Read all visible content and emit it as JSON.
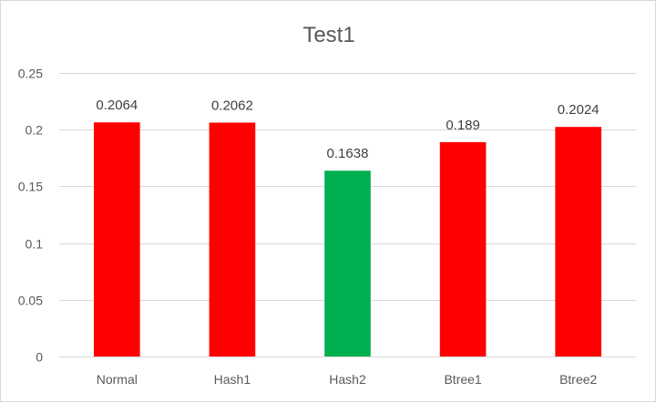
{
  "chart_data": {
    "type": "bar",
    "title": "Test1",
    "categories": [
      "Normal",
      "Hash1",
      "Hash2",
      "Btree1",
      "Btree2"
    ],
    "values": [
      0.2064,
      0.2062,
      0.1638,
      0.189,
      0.2024
    ],
    "data_labels": [
      "0.2064",
      "0.2062",
      "0.1638",
      "0.189",
      "0.2024"
    ],
    "bar_colors": [
      "#ff0000",
      "#ff0000",
      "#00b050",
      "#ff0000",
      "#ff0000"
    ],
    "ylim": [
      0,
      0.25
    ],
    "yticks": [
      0,
      0.05,
      0.1,
      0.15,
      0.2,
      0.25
    ],
    "ytick_labels": [
      "0",
      "0.05",
      "0.1",
      "0.15",
      "0.2",
      "0.25"
    ],
    "grid": true,
    "legend": "none",
    "xlabel": "",
    "ylabel": ""
  }
}
